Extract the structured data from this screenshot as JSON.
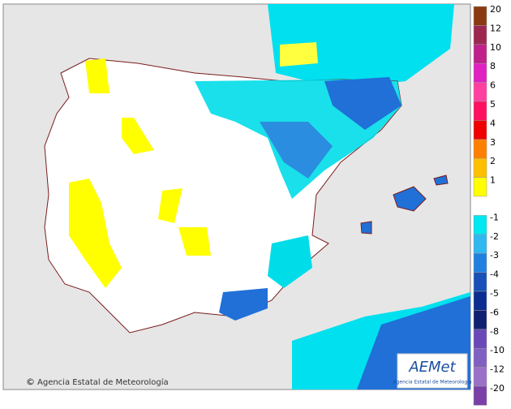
{
  "credit": "Agencia Estatal de Meteorología",
  "credit_symbol": "©",
  "logo": {
    "name": "AEMet",
    "subtitle": "Agencia Estatal de Meteorología"
  },
  "legend": [
    {
      "value": 20,
      "color": "#8a3a10"
    },
    {
      "value": 12,
      "color": "#9c2850"
    },
    {
      "value": 10,
      "color": "#c0208a"
    },
    {
      "value": 8,
      "color": "#e020c0"
    },
    {
      "value": 6,
      "color": "#ff40a0"
    },
    {
      "value": 5,
      "color": "#ff1060"
    },
    {
      "value": 4,
      "color": "#f00000"
    },
    {
      "value": 3,
      "color": "#ff8000"
    },
    {
      "value": 2,
      "color": "#ffc000"
    },
    {
      "value": 1,
      "color": "#ffff00"
    },
    {
      "value": -1,
      "color": "#00e8f0"
    },
    {
      "value": -2,
      "color": "#30b8f0"
    },
    {
      "value": -3,
      "color": "#2080e0"
    },
    {
      "value": -4,
      "color": "#1850b8"
    },
    {
      "value": -5,
      "color": "#0c2c90"
    },
    {
      "value": -6,
      "color": "#102070"
    },
    {
      "value": -8,
      "color": "#6a48b8"
    },
    {
      "value": -10,
      "color": "#8060c0"
    },
    {
      "value": -12,
      "color": "#9a70c8"
    },
    {
      "value": -20,
      "color": "#7a40a8"
    }
  ]
}
